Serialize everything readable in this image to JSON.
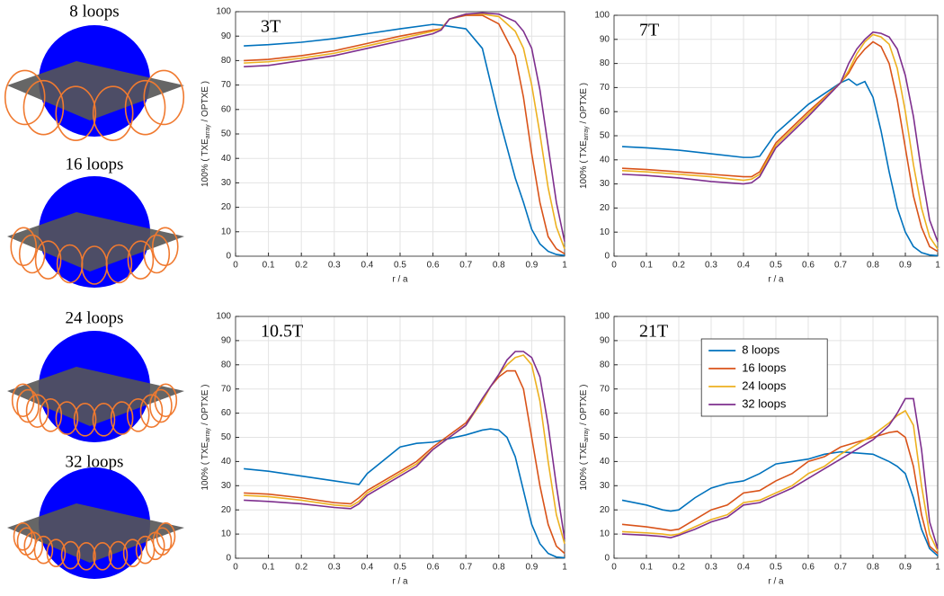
{
  "panels": [
    {
      "label": "8 loops"
    },
    {
      "label": "16 loops"
    },
    {
      "label": "24 loops"
    },
    {
      "label": "32 loops"
    }
  ],
  "chart_data": [
    {
      "type": "line",
      "title": "3T",
      "xlabel": "r / a",
      "ylabel": [
        "100% ( TXE",
        "array",
        " / OPTXE )"
      ],
      "x": [
        0.025,
        0.1,
        0.2,
        0.3,
        0.4,
        0.5,
        0.6,
        0.625,
        0.65,
        0.7,
        0.75,
        0.8,
        0.85,
        0.875,
        0.9,
        0.925,
        0.95,
        0.975,
        1.0
      ],
      "series": [
        {
          "color": "#0072bd",
          "values": [
            86,
            86.5,
            87.5,
            89,
            91,
            93,
            94.8,
            94.5,
            94,
            93,
            85,
            57,
            32,
            22,
            11,
            5,
            2,
            0.7,
            0.3
          ]
        },
        {
          "color": "#d95319",
          "values": [
            80,
            80.5,
            82,
            84,
            87,
            90,
            92.5,
            93,
            97,
            98.5,
            98.5,
            95,
            82,
            65,
            42,
            22,
            8,
            3,
            1
          ]
        },
        {
          "color": "#edb120",
          "values": [
            79,
            79.5,
            81,
            83,
            86,
            89,
            92,
            93,
            97,
            99,
            99,
            98,
            92,
            85,
            70,
            50,
            28,
            12,
            3
          ]
        },
        {
          "color": "#7e2f8e",
          "values": [
            77.5,
            78,
            80,
            82,
            85,
            88,
            91,
            92.5,
            97,
            99,
            99.5,
            99,
            96,
            92,
            85,
            68,
            45,
            22,
            6
          ]
        }
      ],
      "xlim": [
        0,
        1
      ],
      "xticks": [
        0,
        0.1,
        0.2,
        0.3,
        0.4,
        0.5,
        0.6,
        0.7,
        0.8,
        0.9,
        1
      ],
      "ylim": [
        0,
        100
      ],
      "yticks": [
        0,
        10,
        20,
        30,
        40,
        50,
        60,
        70,
        80,
        90,
        100
      ],
      "grid": true
    },
    {
      "type": "line",
      "title": "7T",
      "xlabel": "r / a",
      "ylabel": [
        "100% ( TXE",
        "array",
        " / OPTXE )"
      ],
      "x": [
        0.025,
        0.1,
        0.2,
        0.3,
        0.4,
        0.425,
        0.45,
        0.5,
        0.6,
        0.7,
        0.725,
        0.75,
        0.775,
        0.8,
        0.825,
        0.85,
        0.875,
        0.9,
        0.925,
        0.95,
        0.975,
        1.0
      ],
      "series": [
        {
          "color": "#0072bd",
          "values": [
            45.5,
            45,
            44,
            42.5,
            41,
            41,
            41.5,
            51,
            63,
            72,
            73.5,
            71,
            72.5,
            66,
            52,
            35,
            20,
            10,
            4,
            1.5,
            0.5,
            0.2
          ]
        },
        {
          "color": "#d95319",
          "values": [
            36.5,
            36,
            35,
            34,
            33,
            33,
            35,
            47,
            60,
            72,
            76,
            82,
            86,
            89,
            87,
            80,
            65,
            45,
            25,
            12,
            4,
            2
          ]
        },
        {
          "color": "#edb120",
          "values": [
            35.5,
            35,
            34,
            33,
            31.5,
            32,
            34,
            46,
            59,
            72,
            77,
            84,
            89,
            92,
            91,
            88,
            78,
            60,
            38,
            20,
            8,
            3
          ]
        },
        {
          "color": "#7e2f8e",
          "values": [
            34,
            33.5,
            32.5,
            31,
            30,
            30.5,
            33,
            45,
            58,
            72,
            80,
            86,
            90,
            93,
            92.5,
            91,
            86,
            75,
            58,
            35,
            15,
            6
          ]
        }
      ],
      "xlim": [
        0,
        1
      ],
      "xticks": [
        0,
        0.1,
        0.2,
        0.3,
        0.4,
        0.5,
        0.6,
        0.7,
        0.8,
        0.9,
        1
      ],
      "ylim": [
        0,
        100
      ],
      "yticks": [
        0,
        10,
        20,
        30,
        40,
        50,
        60,
        70,
        80,
        90,
        100
      ],
      "grid": true
    },
    {
      "type": "line",
      "title": "10.5T",
      "xlabel": "r / a",
      "ylabel": [
        "100% ( TXE",
        "array",
        " / OPTXE )"
      ],
      "x": [
        0.025,
        0.1,
        0.2,
        0.3,
        0.35,
        0.375,
        0.4,
        0.5,
        0.55,
        0.6,
        0.7,
        0.75,
        0.775,
        0.8,
        0.825,
        0.85,
        0.875,
        0.9,
        0.925,
        0.95,
        0.975,
        1.0
      ],
      "series": [
        {
          "color": "#0072bd",
          "values": [
            37,
            36,
            34,
            32,
            31,
            30.5,
            35,
            46,
            47.5,
            48,
            51,
            53,
            53.5,
            53,
            50,
            42,
            28,
            14,
            6,
            2,
            0.5,
            0.2
          ]
        },
        {
          "color": "#d95319",
          "values": [
            27,
            26.5,
            25,
            23,
            22.5,
            25,
            28,
            36,
            40,
            46,
            56,
            65,
            71,
            75,
            77.5,
            77.5,
            70,
            50,
            30,
            14,
            5,
            2
          ]
        },
        {
          "color": "#edb120",
          "values": [
            26,
            25.5,
            24,
            22,
            21.5,
            23.5,
            27,
            35,
            39,
            45,
            55,
            65,
            71,
            76,
            80,
            83,
            84,
            80,
            65,
            40,
            18,
            6
          ]
        },
        {
          "color": "#7e2f8e",
          "values": [
            24,
            23.5,
            22.5,
            21,
            20.5,
            22.5,
            26,
            34,
            38,
            45,
            55,
            66,
            71,
            76,
            82,
            85.5,
            85.5,
            83,
            75,
            55,
            30,
            8
          ]
        }
      ],
      "xlim": [
        0,
        1
      ],
      "xticks": [
        0,
        0.1,
        0.2,
        0.3,
        0.4,
        0.5,
        0.6,
        0.7,
        0.8,
        0.9,
        1
      ],
      "ylim": [
        0,
        100
      ],
      "yticks": [
        0,
        10,
        20,
        30,
        40,
        50,
        60,
        70,
        80,
        90,
        100
      ],
      "grid": true
    },
    {
      "type": "line",
      "title": "21T",
      "xlabel": "r / a",
      "ylabel": [
        "100% ( TXE",
        "array",
        " / OPTXE )"
      ],
      "x": [
        0.025,
        0.1,
        0.15,
        0.175,
        0.2,
        0.25,
        0.3,
        0.35,
        0.4,
        0.45,
        0.5,
        0.55,
        0.6,
        0.65,
        0.7,
        0.75,
        0.8,
        0.85,
        0.875,
        0.9,
        0.925,
        0.95,
        0.975,
        1.0
      ],
      "series": [
        {
          "name": "8 loops",
          "color": "#0072bd",
          "values": [
            24,
            22,
            20,
            19.5,
            20,
            25,
            29,
            31,
            32,
            35,
            39,
            40,
            41,
            43,
            44,
            43.5,
            43,
            40,
            38,
            35,
            25,
            12,
            4,
            1
          ]
        },
        {
          "name": "16 loops",
          "color": "#d95319",
          "values": [
            14,
            13,
            12,
            11.5,
            12,
            16,
            20,
            22,
            27,
            28,
            32,
            35,
            40,
            42,
            46,
            48,
            50,
            52,
            52.5,
            50,
            38,
            18,
            5,
            2
          ]
        },
        {
          "name": "24 loops",
          "color": "#edb120",
          "values": [
            11,
            10.5,
            10,
            9.5,
            10,
            13,
            16,
            18,
            23,
            24,
            27,
            30,
            35,
            38,
            43,
            47,
            51,
            56,
            59,
            61,
            55,
            30,
            10,
            3
          ]
        },
        {
          "name": "32 loops",
          "color": "#7e2f8e",
          "values": [
            10,
            9.5,
            9,
            8.5,
            9.5,
            12,
            15,
            17,
            22,
            23,
            26,
            29,
            33,
            37,
            41,
            45,
            49,
            55,
            60,
            66,
            66,
            45,
            15,
            4
          ]
        }
      ],
      "xlim": [
        0,
        1
      ],
      "xticks": [
        0,
        0.1,
        0.2,
        0.3,
        0.4,
        0.5,
        0.6,
        0.7,
        0.8,
        0.9,
        1
      ],
      "ylim": [
        0,
        100
      ],
      "yticks": [
        0,
        10,
        20,
        30,
        40,
        50,
        60,
        70,
        80,
        90,
        100
      ],
      "grid": true,
      "legend": "upper center"
    }
  ]
}
